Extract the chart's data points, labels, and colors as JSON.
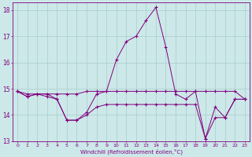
{
  "xlabel": "Windchill (Refroidissement éolien,°C)",
  "background_color": "#cce8e8",
  "line_color": "#800080",
  "grid_color": "#aacccc",
  "xlim": [
    -0.5,
    23.5
  ],
  "ylim": [
    13.0,
    18.3
  ],
  "yticks": [
    13,
    14,
    15,
    16,
    17,
    18
  ],
  "xticks": [
    0,
    1,
    2,
    3,
    4,
    5,
    6,
    7,
    8,
    9,
    10,
    11,
    12,
    13,
    14,
    15,
    16,
    17,
    18,
    19,
    20,
    21,
    22,
    23
  ],
  "series1": [
    14.9,
    14.7,
    14.8,
    14.8,
    14.6,
    13.8,
    13.8,
    14.1,
    14.8,
    14.9,
    16.1,
    16.8,
    17.0,
    17.6,
    18.1,
    16.6,
    14.8,
    14.6,
    14.9,
    13.1,
    14.3,
    13.9,
    14.6,
    14.6
  ],
  "series2": [
    14.9,
    14.8,
    14.8,
    14.8,
    14.8,
    14.8,
    14.8,
    14.9,
    14.9,
    14.9,
    14.9,
    14.9,
    14.9,
    14.9,
    14.9,
    14.9,
    14.9,
    14.9,
    14.9,
    14.9,
    14.9,
    14.9,
    14.9,
    14.6
  ],
  "series3": [
    14.9,
    14.7,
    14.8,
    14.7,
    14.6,
    13.8,
    13.8,
    14.0,
    14.3,
    14.4,
    14.4,
    14.4,
    14.4,
    14.4,
    14.4,
    14.4,
    14.4,
    14.4,
    14.4,
    13.1,
    13.9,
    13.9,
    14.6,
    14.6
  ]
}
